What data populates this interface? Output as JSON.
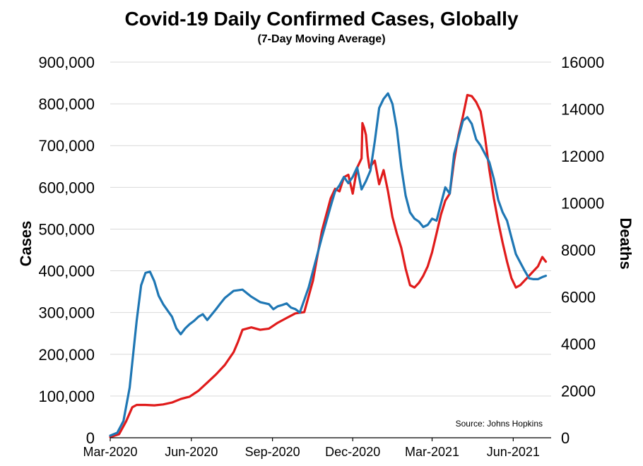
{
  "chart_data": {
    "type": "line",
    "title": "Covid-19 Daily Confirmed Cases, Globally",
    "subtitle": "(7-Day Moving Average)",
    "left_axis_label": "Cases",
    "right_axis_label": "Deaths",
    "source": "Source: Johns Hopkins",
    "colors": {
      "cases": "#1f77b4",
      "deaths": "#e01b1b",
      "grid": "#d9d9d9"
    },
    "ylim_left": [
      0,
      900000
    ],
    "ylim_right": [
      0,
      16000
    ],
    "xlim": [
      0,
      500
    ],
    "y_left_ticks": [
      {
        "value": 0,
        "label": "0"
      },
      {
        "value": 100000,
        "label": "100,000"
      },
      {
        "value": 200000,
        "label": "200,000"
      },
      {
        "value": 300000,
        "label": "300,000"
      },
      {
        "value": 400000,
        "label": "400,000"
      },
      {
        "value": 500000,
        "label": "500,000"
      },
      {
        "value": 600000,
        "label": "600,000"
      },
      {
        "value": 700000,
        "label": "700,000"
      },
      {
        "value": 800000,
        "label": "800,000"
      },
      {
        "value": 900000,
        "label": "900,000"
      }
    ],
    "y_right_ticks": [
      {
        "value": 0,
        "label": "0"
      },
      {
        "value": 2000,
        "label": "2000"
      },
      {
        "value": 4000,
        "label": "4000"
      },
      {
        "value": 6000,
        "label": "6000"
      },
      {
        "value": 8000,
        "label": "8000"
      },
      {
        "value": 10000,
        "label": "10000"
      },
      {
        "value": 12000,
        "label": "12000"
      },
      {
        "value": 14000,
        "label": "14000"
      },
      {
        "value": 16000,
        "label": "16000"
      }
    ],
    "x_ticks": [
      {
        "day": 0,
        "label": "Mar-2020"
      },
      {
        "day": 92,
        "label": "Jun-2020"
      },
      {
        "day": 184,
        "label": "Sep-2020"
      },
      {
        "day": 275,
        "label": "Dec-2020"
      },
      {
        "day": 365,
        "label": "Mar-2021"
      },
      {
        "day": 457,
        "label": "Jun-2021"
      }
    ],
    "series": [
      {
        "name": "Cases",
        "axis": "left",
        "x": [
          0,
          8,
          15,
          22,
          30,
          35,
          40,
          45,
          50,
          55,
          60,
          65,
          70,
          75,
          80,
          85,
          90,
          95,
          100,
          105,
          110,
          115,
          120,
          125,
          130,
          140,
          150,
          160,
          170,
          180,
          185,
          190,
          195,
          200,
          205,
          210,
          215,
          220,
          225,
          230,
          240,
          250,
          255,
          260,
          265,
          270,
          275,
          280,
          285,
          290,
          295,
          300,
          305,
          310,
          315,
          320,
          325,
          330,
          335,
          340,
          345,
          350,
          355,
          360,
          365,
          370,
          375,
          380,
          385,
          390,
          395,
          400,
          405,
          410,
          415,
          420,
          425,
          430,
          435,
          440,
          445,
          450,
          455,
          460,
          465,
          470,
          475,
          480,
          485,
          490,
          494
        ],
        "values": [
          5000,
          12000,
          40000,
          120000,
          280000,
          365000,
          395000,
          398000,
          375000,
          340000,
          320000,
          305000,
          290000,
          262000,
          248000,
          262000,
          272000,
          280000,
          290000,
          296000,
          282000,
          295000,
          308000,
          322000,
          335000,
          352000,
          355000,
          338000,
          325000,
          320000,
          308000,
          315000,
          318000,
          322000,
          312000,
          308000,
          300000,
          330000,
          360000,
          400000,
          480000,
          555000,
          590000,
          605000,
          625000,
          610000,
          625000,
          648000,
          595000,
          615000,
          640000,
          710000,
          790000,
          812000,
          825000,
          800000,
          740000,
          650000,
          580000,
          540000,
          525000,
          518000,
          505000,
          510000,
          525000,
          520000,
          560000,
          600000,
          585000,
          680000,
          720000,
          760000,
          768000,
          752000,
          715000,
          700000,
          680000,
          660000,
          620000,
          570000,
          540000,
          520000,
          480000,
          440000,
          420000,
          400000,
          382000,
          380000,
          380000,
          385000,
          388000
        ]
      },
      {
        "name": "Deaths",
        "axis": "right",
        "x": [
          0,
          10,
          18,
          25,
          30,
          40,
          50,
          60,
          70,
          80,
          90,
          100,
          110,
          120,
          130,
          140,
          145,
          150,
          160,
          170,
          180,
          190,
          200,
          210,
          220,
          230,
          240,
          250,
          255,
          260,
          265,
          270,
          275,
          280,
          285,
          286,
          288,
          290,
          292,
          294,
          300,
          305,
          310,
          315,
          320,
          325,
          330,
          335,
          340,
          345,
          350,
          355,
          360,
          365,
          370,
          375,
          380,
          385,
          390,
          395,
          400,
          405,
          410,
          415,
          420,
          425,
          430,
          435,
          440,
          445,
          450,
          455,
          460,
          465,
          470,
          475,
          480,
          485,
          490,
          494
        ],
        "values": [
          30,
          150,
          700,
          1300,
          1400,
          1400,
          1380,
          1420,
          1500,
          1650,
          1750,
          2000,
          2350,
          2700,
          3100,
          3650,
          4100,
          4600,
          4700,
          4600,
          4650,
          4900,
          5100,
          5300,
          5350,
          6700,
          8800,
          10200,
          10600,
          10500,
          11100,
          11200,
          10400,
          11500,
          11900,
          13400,
          13200,
          12900,
          12000,
          11500,
          11800,
          10800,
          11400,
          10500,
          9400,
          8700,
          8100,
          7200,
          6500,
          6400,
          6600,
          6900,
          7300,
          7900,
          8700,
          9500,
          10100,
          10400,
          11800,
          12900,
          13700,
          14600,
          14550,
          14300,
          13900,
          12800,
          11400,
          10200,
          9200,
          8300,
          7500,
          6800,
          6400,
          6500,
          6700,
          6900,
          7100,
          7300,
          7700,
          7500
        ]
      }
    ]
  }
}
